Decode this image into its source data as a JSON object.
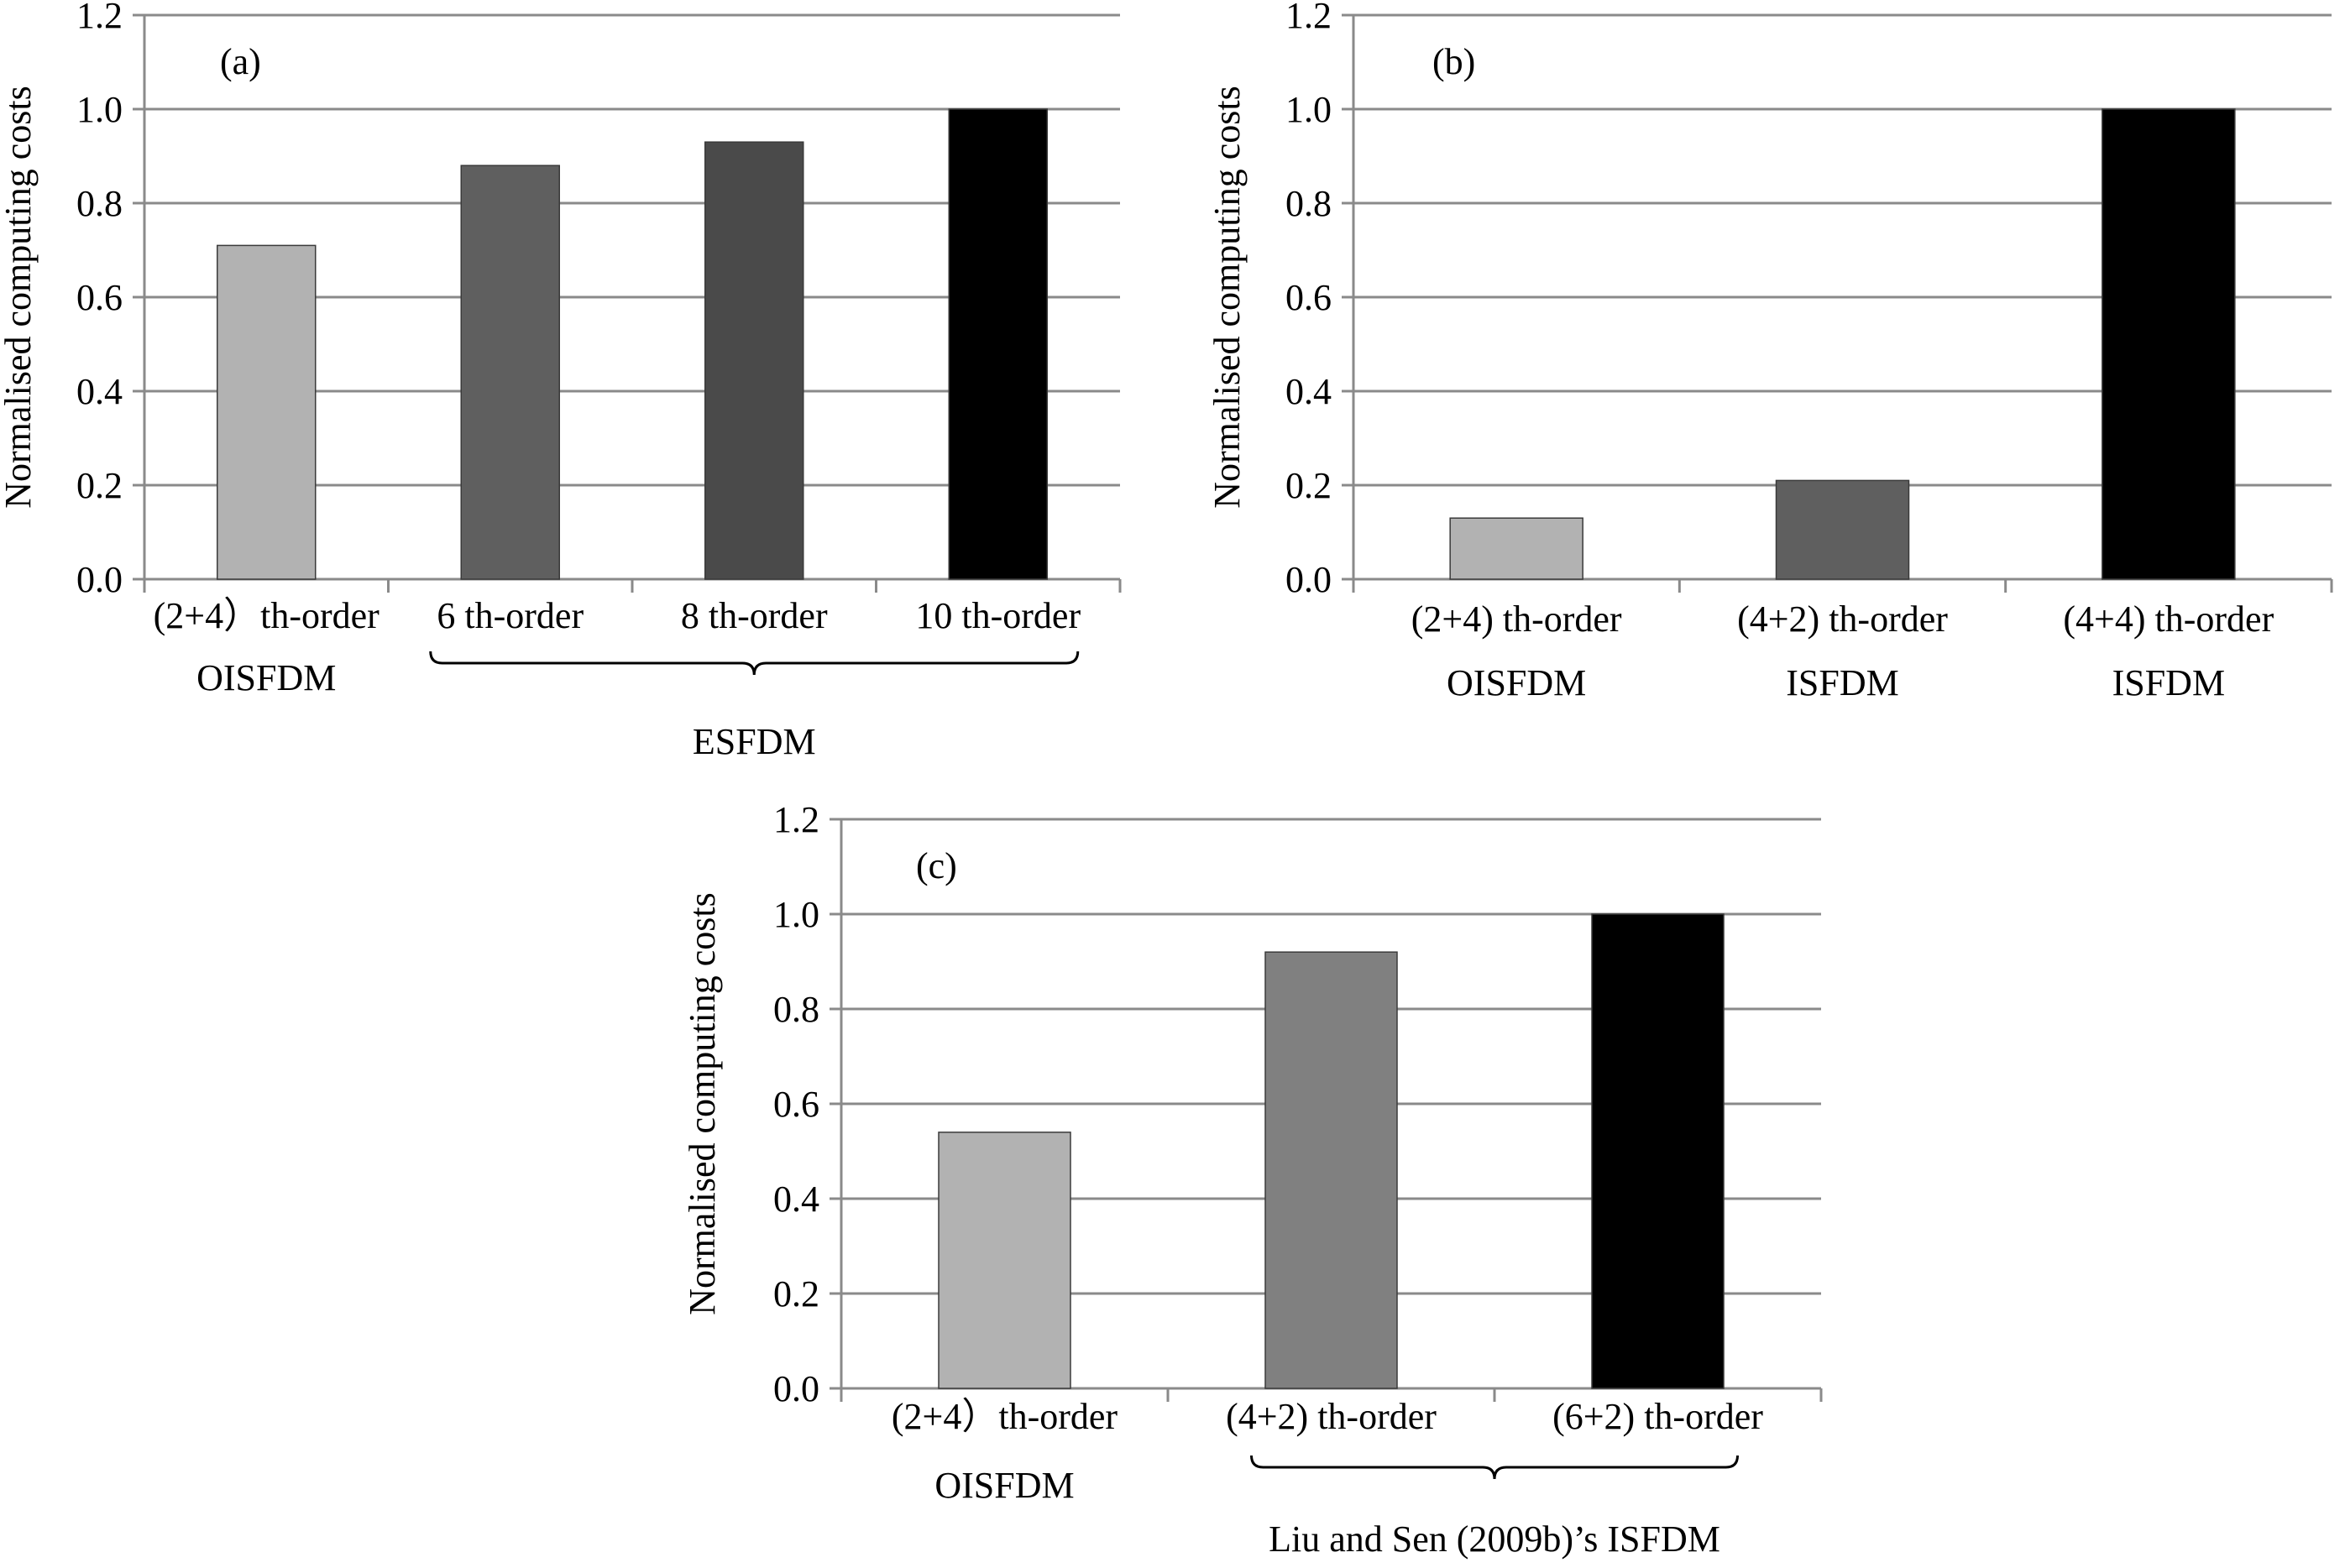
{
  "chart_data": [
    {
      "type": "bar",
      "panel_label": "(a)",
      "ylabel": "Normalised computing costs",
      "ylim": [
        0,
        1.2
      ],
      "yticks": [
        "0.0",
        "0.2",
        "0.4",
        "0.6",
        "0.8",
        "1.0",
        "1.2"
      ],
      "grid": true,
      "categories": [
        [
          "(2+4）th-order",
          "OISFDM"
        ],
        [
          "6 th-order"
        ],
        [
          "8 th-order"
        ],
        [
          "10 th-order"
        ]
      ],
      "values": [
        0.71,
        0.88,
        0.93,
        1.0
      ],
      "colors": [
        "#b2b2b2",
        "#5f5f5f",
        "#4a4a4a",
        "#000000"
      ],
      "group_label": "ESFDM",
      "group_span": [
        1,
        3
      ]
    },
    {
      "type": "bar",
      "panel_label": "(b)",
      "ylabel": "Normalised computing costs",
      "ylim": [
        0,
        1.2
      ],
      "yticks": [
        "0.0",
        "0.2",
        "0.4",
        "0.6",
        "0.8",
        "1.0",
        "1.2"
      ],
      "grid": true,
      "categories": [
        [
          "(2+4) th-order",
          "OISFDM"
        ],
        [
          "(4+2) th-order",
          "ISFDM"
        ],
        [
          "(4+4) th-order",
          "ISFDM"
        ]
      ],
      "values": [
        0.13,
        0.21,
        1.0
      ],
      "colors": [
        "#b2b2b2",
        "#5f5f5f",
        "#000000"
      ]
    },
    {
      "type": "bar",
      "panel_label": "(c)",
      "ylabel": "Normalised computing costs",
      "ylim": [
        0,
        1.2
      ],
      "yticks": [
        "0.0",
        "0.2",
        "0.4",
        "0.6",
        "0.8",
        "1.0",
        "1.2"
      ],
      "grid": true,
      "categories": [
        [
          "(2+4）th-order",
          "OISFDM"
        ],
        [
          "(4+2) th-order"
        ],
        [
          "(6+2) th-order"
        ]
      ],
      "values": [
        0.54,
        0.92,
        1.0
      ],
      "colors": [
        "#b2b2b2",
        "#808080",
        "#000000"
      ],
      "group_label": "Liu and Sen (2009b)’s ISFDM",
      "group_span": [
        1,
        2
      ]
    }
  ]
}
